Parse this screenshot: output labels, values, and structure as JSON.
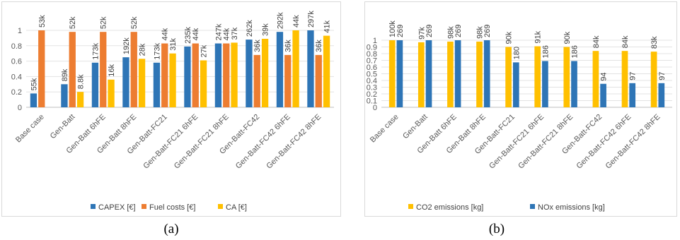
{
  "captions": {
    "a": "(a)",
    "b": "(b)"
  },
  "chart_data": [
    {
      "type": "bar",
      "title": "",
      "xlabel": "",
      "ylabel": "",
      "ylim": [
        0,
        1
      ],
      "yticks": [
        "0",
        "0.2",
        "0.4",
        "0.6",
        "0.8",
        "1"
      ],
      "grid": true,
      "legend": "bottom",
      "categories": [
        "Base case",
        "Gen-Batt",
        "Gen-Batt 6hFE",
        "Gen-Batt 8hFE",
        "Gen-Batt-FC21",
        "Gen-Batt-FC21 6hFE",
        "Gen-Batt-FC21 8hFE",
        "Gen-Batt-FC42",
        "Gen-Batt-FC42 6hFE",
        "Gen-Batt-FC42 8hFE"
      ],
      "series": [
        {
          "name": "CAPEX [€]",
          "color": "#2e75b6",
          "values": [
            0.18,
            0.3,
            0.58,
            0.65,
            0.58,
            0.79,
            0.83,
            0.88,
            0.98,
            1.0
          ],
          "labels": [
            "55k",
            "89k",
            "173k",
            "192k",
            "173k",
            "235k",
            "247k",
            "262k",
            "292k",
            "297k"
          ]
        },
        {
          "name": "Fuel costs [€]",
          "color": "#ed7d31",
          "values": [
            1.0,
            0.98,
            0.98,
            0.98,
            0.83,
            0.83,
            0.83,
            0.68,
            0.68,
            0.68
          ],
          "labels": [
            "53k",
            "52k",
            "52k",
            "52k",
            "44k",
            "44k",
            "44k",
            "36k",
            "36k",
            "36k"
          ]
        },
        {
          "name": "CA [€]",
          "color": "#ffc000",
          "values": [
            0.0,
            0.2,
            0.36,
            0.63,
            0.7,
            0.61,
            0.84,
            0.89,
            1.0,
            0.93
          ],
          "labels": [
            "",
            "8.8k",
            "16k",
            "28k",
            "31k",
            "27k",
            "37k",
            "39k",
            "44k",
            "41k"
          ]
        }
      ]
    },
    {
      "type": "bar",
      "title": "",
      "xlabel": "",
      "ylabel": "",
      "ylim": [
        0,
        1
      ],
      "yticks": [
        "0",
        "0.1",
        "0.2",
        "0.3",
        "0.4",
        "0.5",
        "0.6",
        "0.7",
        "0.8",
        "0.9",
        "1"
      ],
      "grid": true,
      "legend": "bottom",
      "categories": [
        "Base case",
        "Gen-Batt",
        "Gen-Batt 6hFE",
        "Gen-Batt 8hFE",
        "Gen-Batt-FC21",
        "Gen-Batt-FC21 6hFE",
        "Gen-Batt-FC21 8hFE",
        "Gen-Batt-FC42",
        "Gen-Batt-FC42 6hFE",
        "Gen-Batt-FC42 8hFE"
      ],
      "series": [
        {
          "name": "CO2 emissions [kg]",
          "color": "#ffc000",
          "values": [
            1.0,
            0.97,
            0.98,
            0.98,
            0.9,
            0.91,
            0.9,
            0.84,
            0.84,
            0.83
          ],
          "labels": [
            "100k",
            "97k",
            "98k",
            "98k",
            "90k",
            "91k",
            "90k",
            "84k",
            "84k",
            "83k"
          ]
        },
        {
          "name": "NOx emissions [kg]",
          "color": "#2e75b6",
          "values": [
            1.0,
            1.0,
            1.0,
            1.0,
            0.67,
            0.69,
            0.69,
            0.35,
            0.36,
            0.36
          ],
          "labels": [
            "269",
            "269",
            "269",
            "269",
            "180",
            "186",
            "186",
            "94",
            "97",
            "97"
          ]
        }
      ]
    }
  ]
}
